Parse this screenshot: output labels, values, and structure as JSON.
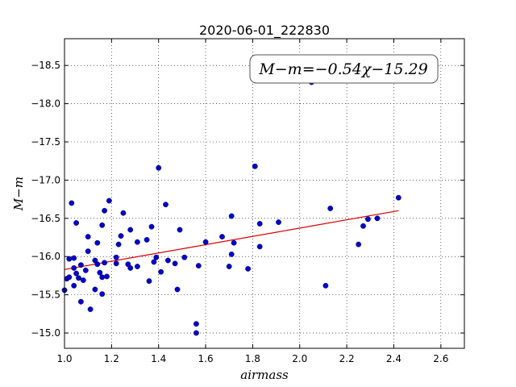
{
  "chart_data": {
    "type": "scatter",
    "title": "2020-06-01_222830",
    "xlabel": "airmass",
    "ylabel": "M−m",
    "xlim": [
      1.0,
      2.7
    ],
    "ylim": [
      -18.85,
      -14.8
    ],
    "y_inverted": true,
    "grid": true,
    "xticks": [
      "1.0",
      "1.2",
      "1.4",
      "1.6",
      "1.8",
      "2.0",
      "2.2",
      "2.4",
      "2.6"
    ],
    "yticks": [
      "−15.0",
      "−15.5",
      "−16.0",
      "−16.5",
      "−17.0",
      "−17.5",
      "−18.0",
      "−18.5"
    ],
    "annotation": "M−m=−0.54χ−15.29",
    "colors": {
      "points": "#0000cc",
      "fit": "#dd0000"
    },
    "series": [
      {
        "type": "scatter",
        "points": [
          [
            1.0,
            -15.56
          ],
          [
            1.01,
            -15.71
          ],
          [
            1.02,
            -15.73
          ],
          [
            1.02,
            -15.97
          ],
          [
            1.03,
            -16.7
          ],
          [
            1.04,
            -15.98
          ],
          [
            1.04,
            -15.62
          ],
          [
            1.04,
            -15.85
          ],
          [
            1.05,
            -15.78
          ],
          [
            1.05,
            -16.44
          ],
          [
            1.06,
            -15.72
          ],
          [
            1.07,
            -15.89
          ],
          [
            1.07,
            -15.41
          ],
          [
            1.08,
            -15.69
          ],
          [
            1.09,
            -15.82
          ],
          [
            1.1,
            -16.07
          ],
          [
            1.1,
            -16.26
          ],
          [
            1.11,
            -15.31
          ],
          [
            1.13,
            -15.95
          ],
          [
            1.13,
            -15.57
          ],
          [
            1.14,
            -15.9
          ],
          [
            1.14,
            -16.18
          ],
          [
            1.15,
            -15.79
          ],
          [
            1.16,
            -15.73
          ],
          [
            1.16,
            -16.41
          ],
          [
            1.16,
            -15.51
          ],
          [
            1.17,
            -15.92
          ],
          [
            1.17,
            -16.6
          ],
          [
            1.18,
            -15.74
          ],
          [
            1.19,
            -16.73
          ],
          [
            1.22,
            -15.91
          ],
          [
            1.22,
            -15.99
          ],
          [
            1.23,
            -16.16
          ],
          [
            1.24,
            -16.27
          ],
          [
            1.25,
            -16.57
          ],
          [
            1.27,
            -15.9
          ],
          [
            1.28,
            -16.35
          ],
          [
            1.28,
            -15.85
          ],
          [
            1.31,
            -16.19
          ],
          [
            1.31,
            -15.87
          ],
          [
            1.35,
            -16.22
          ],
          [
            1.36,
            -15.68
          ],
          [
            1.37,
            -16.39
          ],
          [
            1.38,
            -15.93
          ],
          [
            1.39,
            -15.99
          ],
          [
            1.4,
            -17.16
          ],
          [
            1.41,
            -15.8
          ],
          [
            1.43,
            -16.68
          ],
          [
            1.44,
            -15.95
          ],
          [
            1.47,
            -15.91
          ],
          [
            1.48,
            -15.57
          ],
          [
            1.49,
            -16.35
          ],
          [
            1.51,
            -15.99
          ],
          [
            1.56,
            -15.0
          ],
          [
            1.56,
            -15.12
          ],
          [
            1.57,
            -15.88
          ],
          [
            1.6,
            -16.19
          ],
          [
            1.67,
            -16.26
          ],
          [
            1.7,
            -15.87
          ],
          [
            1.71,
            -16.53
          ],
          [
            1.71,
            -16.03
          ],
          [
            1.72,
            -16.18
          ],
          [
            1.78,
            -15.84
          ],
          [
            1.81,
            -17.18
          ],
          [
            1.83,
            -16.13
          ],
          [
            1.83,
            -16.43
          ],
          [
            1.91,
            -16.45
          ],
          [
            2.05,
            -18.28
          ],
          [
            2.11,
            -15.62
          ],
          [
            2.13,
            -16.63
          ],
          [
            2.25,
            -16.16
          ],
          [
            2.27,
            -16.4
          ],
          [
            2.29,
            -16.49
          ],
          [
            2.33,
            -16.5
          ],
          [
            2.42,
            -16.77
          ]
        ]
      },
      {
        "type": "line",
        "points": [
          [
            1.0,
            -15.83
          ],
          [
            2.42,
            -16.6
          ]
        ]
      }
    ]
  }
}
